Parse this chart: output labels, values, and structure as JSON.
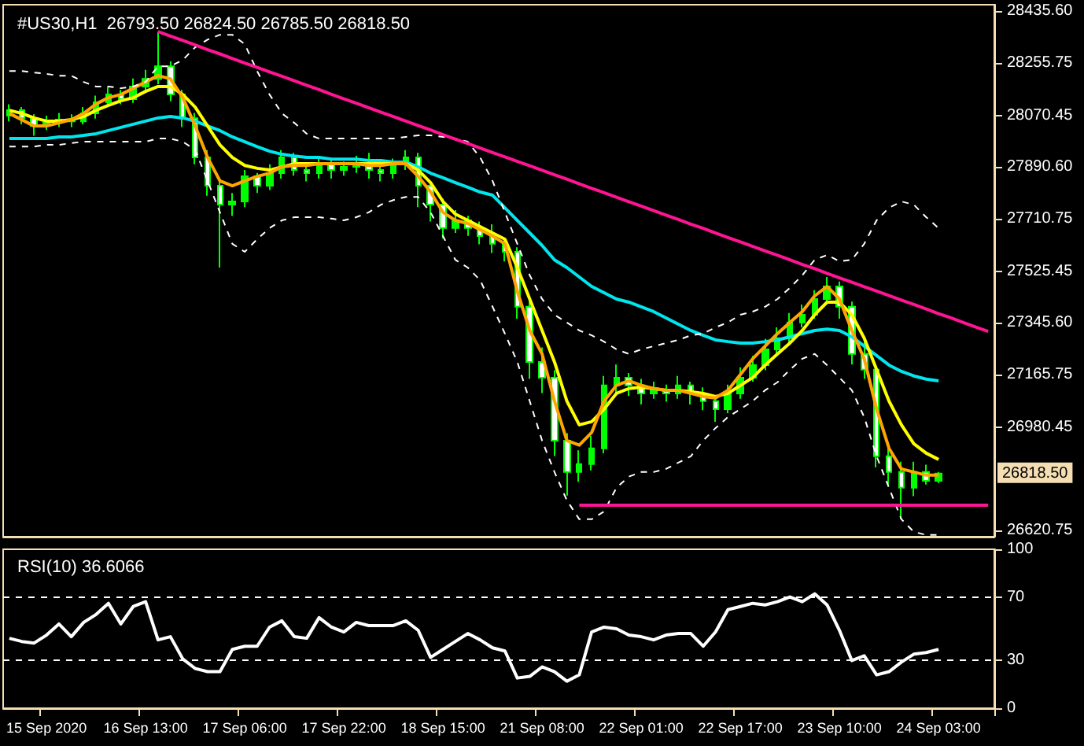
{
  "chart_data": [
    {
      "type": "candlestick",
      "title": "#US30,H1  26793.50 26824.50 26785.50 26818.50",
      "tick_labels": "y",
      "grid": false,
      "marker": "none",
      "color": "#00ff00",
      "categories": [
        null,
        null,
        null,
        null,
        null,
        null,
        null,
        null,
        null,
        null,
        null,
        null,
        null,
        null,
        null,
        null,
        null,
        null,
        null,
        null,
        null,
        null,
        null,
        null,
        null,
        null,
        null,
        null,
        null,
        null,
        null,
        null,
        null,
        null,
        null,
        null,
        null,
        null,
        null,
        null,
        null,
        null,
        null,
        null,
        null,
        null,
        null,
        null,
        null,
        null,
        null,
        null,
        null,
        null,
        null,
        null,
        null,
        null,
        null,
        null,
        null,
        null,
        null,
        null,
        null,
        null,
        null,
        null,
        null,
        null,
        null,
        null,
        null,
        null,
        null,
        null,
        null,
        null,
        null,
        null
      ],
      "ylim": [
        26598,
        28458
      ],
      "yticks": [
        {
          "value": 28435.6,
          "label": "28435.60"
        },
        {
          "value": 28255.75,
          "label": "28255.75"
        },
        {
          "value": 28070.45,
          "label": "28070.45"
        },
        {
          "value": 27890.6,
          "label": "27890.60"
        },
        {
          "value": 27710.75,
          "label": "27710.75"
        },
        {
          "value": 27525.45,
          "label": "27525.45"
        },
        {
          "value": 27345.6,
          "label": "27345.60"
        },
        {
          "value": 27165.75,
          "label": "27165.75"
        },
        {
          "value": 26980.45,
          "label": "26980.45"
        },
        {
          "value": 26620.75,
          "label": "26620.75"
        }
      ],
      "annotations": [
        "26818.50"
      ],
      "ohlc": [
        [
          28070,
          28110,
          28050,
          28089
        ],
        [
          28089,
          28100,
          28040,
          28061
        ],
        [
          28061,
          28075,
          28000,
          28034
        ],
        [
          28034,
          28070,
          28020,
          28045
        ],
        [
          28045,
          28080,
          28030,
          28056
        ],
        [
          28056,
          28075,
          28030,
          28050
        ],
        [
          28050,
          28100,
          28040,
          28078
        ],
        [
          28078,
          28140,
          28060,
          28117
        ],
        [
          28117,
          28170,
          28100,
          28144
        ],
        [
          28144,
          28160,
          28110,
          28128
        ],
        [
          28128,
          28200,
          28115,
          28172
        ],
        [
          28172,
          28230,
          28150,
          28199
        ],
        [
          28199,
          28364,
          28180,
          28243
        ],
        [
          28243,
          28260,
          28120,
          28144
        ],
        [
          28144,
          28160,
          28030,
          28061
        ],
        [
          28061,
          28080,
          27900,
          27924
        ],
        [
          27924,
          27950,
          27790,
          27825
        ],
        [
          27825,
          27840,
          27539,
          27759
        ],
        [
          27759,
          27800,
          27720,
          27770
        ],
        [
          27770,
          27880,
          27750,
          27858
        ],
        [
          27858,
          27870,
          27800,
          27825
        ],
        [
          27825,
          27900,
          27810,
          27869
        ],
        [
          27869,
          27950,
          27850,
          27924
        ],
        [
          27924,
          27940,
          27860,
          27880
        ],
        [
          27880,
          27900,
          27840,
          27869
        ],
        [
          27869,
          27930,
          27850,
          27902
        ],
        [
          27902,
          27920,
          27850,
          27880
        ],
        [
          27880,
          27910,
          27860,
          27891
        ],
        [
          27891,
          27930,
          27870,
          27902
        ],
        [
          27902,
          27940,
          27850,
          27880
        ],
        [
          27880,
          27900,
          27840,
          27869
        ],
        [
          27869,
          27920,
          27850,
          27902
        ],
        [
          27902,
          27950,
          27880,
          27924
        ],
        [
          27924,
          27940,
          27750,
          27825
        ],
        [
          27825,
          27840,
          27700,
          27759
        ],
        [
          27759,
          27780,
          27640,
          27677
        ],
        [
          27677,
          27740,
          27660,
          27704
        ],
        [
          27704,
          27720,
          27650,
          27677
        ],
        [
          27677,
          27700,
          27620,
          27649
        ],
        [
          27649,
          27690,
          27590,
          27622
        ],
        [
          27622,
          27640,
          27560,
          27594
        ],
        [
          27594,
          27610,
          27360,
          27402
        ],
        [
          27402,
          27420,
          27150,
          27209
        ],
        [
          27209,
          27260,
          27100,
          27154
        ],
        [
          27154,
          27180,
          26880,
          26934
        ],
        [
          26934,
          26960,
          26742,
          26824
        ],
        [
          26824,
          26900,
          26790,
          26852
        ],
        [
          26852,
          26950,
          26830,
          26907
        ],
        [
          26907,
          27160,
          26890,
          27127
        ],
        [
          27127,
          27200,
          27100,
          27154
        ],
        [
          27154,
          27170,
          27090,
          27127
        ],
        [
          27127,
          27150,
          27060,
          27099
        ],
        [
          27099,
          27140,
          27080,
          27110
        ],
        [
          27110,
          27130,
          27070,
          27099
        ],
        [
          27099,
          27160,
          27080,
          27127
        ],
        [
          27127,
          27140,
          27060,
          27099
        ],
        [
          27099,
          27120,
          27040,
          27072
        ],
        [
          27072,
          27090,
          27000,
          27044
        ],
        [
          27044,
          27130,
          27030,
          27099
        ],
        [
          27099,
          27190,
          27080,
          27154
        ],
        [
          27154,
          27230,
          27140,
          27198
        ],
        [
          27198,
          27290,
          27180,
          27253
        ],
        [
          27253,
          27330,
          27230,
          27292
        ],
        [
          27292,
          27380,
          27270,
          27347
        ],
        [
          27347,
          27410,
          27330,
          27374
        ],
        [
          27374,
          27460,
          27360,
          27429
        ],
        [
          27429,
          27506,
          27410,
          27473
        ],
        [
          27473,
          27490,
          27360,
          27402
        ],
        [
          27402,
          27420,
          27200,
          27237
        ],
        [
          27237,
          27280,
          27150,
          27182
        ],
        [
          27182,
          27200,
          26840,
          26879
        ],
        [
          26879,
          26920,
          26780,
          26824
        ],
        [
          26824,
          26860,
          26659,
          26769
        ],
        [
          26769,
          26860,
          26740,
          26824
        ],
        [
          26824,
          26850,
          26780,
          26793.5
        ],
        [
          26793.5,
          26824.5,
          26785.5,
          26818.5
        ],
        null,
        null,
        null,
        null
      ],
      "series": [
        {
          "type": "line",
          "color": "#00e5ee",
          "line_style": "solid",
          "values": [
            27990,
            27990,
            27990,
            27990,
            27996,
            27996,
            28001,
            28007,
            28018,
            28029,
            28040,
            28051,
            28062,
            28067,
            28062,
            28051,
            28034,
            28018,
            27996,
            27979,
            27962,
            27946,
            27935,
            27929,
            27924,
            27924,
            27918,
            27918,
            27918,
            27913,
            27913,
            27908,
            27908,
            27891,
            27869,
            27853,
            27836,
            27820,
            27803,
            27792,
            27748,
            27704,
            27660,
            27616,
            27566,
            27539,
            27506,
            27473,
            27451,
            27429,
            27418,
            27402,
            27385,
            27363,
            27341,
            27319,
            27302,
            27286,
            27280,
            27275,
            27275,
            27280,
            27286,
            27297,
            27308,
            27319,
            27324,
            27319,
            27297,
            27264,
            27231,
            27198,
            27176,
            27160,
            27149,
            27143,
            null,
            null,
            null,
            null
          ]
        },
        {
          "type": "line",
          "color": "#ffff00",
          "line_style": "solid",
          "values": [
            28089,
            28078,
            28062,
            28051,
            28051,
            28056,
            28067,
            28089,
            28106,
            28122,
            28133,
            28155,
            28172,
            28172,
            28144,
            28100,
            28034,
            27968,
            27924,
            27896,
            27886,
            27880,
            27891,
            27902,
            27902,
            27902,
            27902,
            27902,
            27902,
            27902,
            27902,
            27902,
            27902,
            27880,
            27836,
            27770,
            27726,
            27704,
            27682,
            27660,
            27638,
            27539,
            27429,
            27319,
            27209,
            27072,
            26989,
            27000,
            27044,
            27099,
            27116,
            27121,
            27116,
            27110,
            27110,
            27105,
            27099,
            27088,
            27099,
            27127,
            27154,
            27198,
            27237,
            27275,
            27319,
            27374,
            27418,
            27418,
            27374,
            27292,
            27182,
            27072,
            26989,
            26923,
            26890,
            26868,
            null,
            null,
            null,
            null
          ]
        },
        {
          "type": "line",
          "color": "#ffa500",
          "line_style": "solid",
          "values": [
            28078,
            28056,
            28034,
            28034,
            28045,
            28056,
            28078,
            28111,
            28133,
            28144,
            28166,
            28188,
            28210,
            28199,
            28133,
            28034,
            27924,
            27842,
            27825,
            27842,
            27858,
            27869,
            27891,
            27896,
            27896,
            27902,
            27902,
            27902,
            27902,
            27896,
            27896,
            27902,
            27902,
            27858,
            27803,
            27732,
            27704,
            27693,
            27671,
            27649,
            27622,
            27456,
            27319,
            27237,
            27072,
            26934,
            26918,
            26962,
            27072,
            27127,
            27143,
            27127,
            27116,
            27110,
            27110,
            27099,
            27088,
            27083,
            27110,
            27165,
            27220,
            27264,
            27308,
            27347,
            27385,
            27440,
            27473,
            27429,
            27319,
            27220,
            27044,
            26907,
            26835,
            26824,
            26813,
            26813,
            null,
            null,
            null,
            null
          ]
        },
        {
          "type": "line",
          "color": "#ffffff",
          "line_style": "dashed",
          "values": [
            28226,
            28226,
            28221,
            28216,
            28210,
            28210,
            28188,
            28172,
            28172,
            28166,
            28172,
            28188,
            28243,
            28243,
            28265,
            28309,
            28336,
            28353,
            28353,
            28320,
            28226,
            28144,
            28078,
            28045,
            28007,
            27990,
            27990,
            27990,
            27990,
            27990,
            27990,
            27990,
            27996,
            28001,
            28001,
            27996,
            27990,
            27979,
            27924,
            27842,
            27732,
            27622,
            27512,
            27429,
            27374,
            27347,
            27319,
            27302,
            27280,
            27253,
            27237,
            27253,
            27264,
            27275,
            27286,
            27302,
            27308,
            27330,
            27347,
            27374,
            27385,
            27402,
            27429,
            27468,
            27512,
            27566,
            27583,
            27561,
            27566,
            27622,
            27704,
            27748,
            27770,
            27759,
            27715,
            27677,
            null,
            null,
            null,
            null
          ]
        },
        {
          "type": "line",
          "color": "#ffffff",
          "line_style": "dashed",
          "values": [
            27962,
            27962,
            27962,
            27968,
            27968,
            27974,
            27979,
            27979,
            27979,
            27979,
            27979,
            27979,
            27990,
            27990,
            27979,
            27951,
            27842,
            27732,
            27622,
            27594,
            27638,
            27677,
            27704,
            27715,
            27715,
            27715,
            27710,
            27704,
            27715,
            27732,
            27759,
            27775,
            27786,
            27786,
            27732,
            27649,
            27566,
            27539,
            27495,
            27402,
            27308,
            27209,
            27072,
            26934,
            26824,
            26725,
            26659,
            26659,
            26686,
            26769,
            26808,
            26824,
            26824,
            26835,
            26857,
            26879,
            26934,
            26978,
            27016,
            27044,
            27072,
            27110,
            27138,
            27182,
            27220,
            27237,
            27198,
            27154,
            27110,
            27016,
            26879,
            26769,
            26659,
            26615,
            26604,
            26604,
            null,
            null,
            null,
            null
          ]
        },
        {
          "type": "line",
          "color": "#ff1493",
          "line_style": "solid",
          "values": [
            null,
            null,
            null,
            null,
            null,
            null,
            null,
            null,
            null,
            null,
            null,
            null,
            28364,
            28348,
            28333,
            28317,
            28301,
            28286,
            28270,
            28254,
            28239,
            28223,
            28208,
            28192,
            28176,
            28161,
            28145,
            28129,
            28114,
            28098,
            28082,
            28067,
            28051,
            28035,
            28020,
            28004,
            27988,
            27973,
            27957,
            27941,
            27926,
            27910,
            27895,
            27879,
            27863,
            27848,
            27832,
            27816,
            27801,
            27785,
            27769,
            27754,
            27738,
            27722,
            27707,
            27691,
            27676,
            27660,
            27644,
            27629,
            27613,
            27597,
            27582,
            27566,
            27550,
            27535,
            27519,
            27503,
            27488,
            27472,
            27457,
            27441,
            27425,
            27410,
            27394,
            27378,
            27363,
            27347,
            27331,
            27316
          ]
        },
        {
          "type": "line",
          "color": "#ff1493",
          "line_style": "solid",
          "values": [
            null,
            null,
            null,
            null,
            null,
            null,
            null,
            null,
            null,
            null,
            null,
            null,
            null,
            null,
            null,
            null,
            null,
            null,
            null,
            null,
            null,
            null,
            null,
            null,
            null,
            null,
            null,
            null,
            null,
            null,
            null,
            null,
            null,
            null,
            null,
            null,
            null,
            null,
            null,
            null,
            null,
            null,
            null,
            null,
            null,
            null,
            26708,
            26708,
            26708,
            26708,
            26708,
            26708,
            26708,
            26708,
            26708,
            26708,
            26708,
            26708,
            26708,
            26708,
            26708,
            26708,
            26708,
            26708,
            26708,
            26708,
            26708,
            26708,
            26708,
            26708,
            26708,
            26708,
            26708,
            26708,
            26708,
            26708,
            26708,
            26708,
            26708,
            26708
          ]
        }
      ]
    },
    {
      "type": "line",
      "title": "RSI(10) 36.6066",
      "grid": false,
      "marker": "none",
      "categories": [
        null,
        null,
        null,
        "15 Sep 2020",
        null,
        null,
        null,
        null,
        null,
        null,
        null,
        "16 Sep 13:00",
        null,
        null,
        null,
        null,
        null,
        null,
        null,
        "17 Sep 06:00",
        null,
        null,
        null,
        null,
        null,
        null,
        null,
        "17 Sep 22:00",
        null,
        null,
        null,
        null,
        null,
        null,
        null,
        "18 Sep 15:00",
        null,
        null,
        null,
        null,
        null,
        null,
        null,
        "21 Sep 08:00",
        null,
        null,
        null,
        null,
        null,
        null,
        null,
        "22 Sep 01:00",
        null,
        null,
        null,
        null,
        null,
        null,
        null,
        "22 Sep 17:00",
        null,
        null,
        null,
        null,
        null,
        null,
        null,
        "23 Sep 10:00",
        null,
        null,
        null,
        null,
        null,
        null,
        null,
        "24 Sep 03:00",
        null,
        null,
        null,
        null
      ],
      "ylim": [
        0,
        100
      ],
      "yticks": [
        0,
        30,
        70,
        100
      ],
      "ref_lines": [
        {
          "axis": "y",
          "value": 70,
          "color": "#ffffff",
          "line_style": "dashed"
        },
        {
          "axis": "y",
          "value": 30,
          "color": "#ffffff",
          "line_style": "dashed"
        }
      ],
      "series": [
        {
          "color": "#ffffff",
          "line_style": "solid",
          "values": [
            44,
            42,
            41,
            46,
            53,
            45,
            54,
            59,
            66,
            53,
            64,
            67,
            43,
            45,
            31,
            25,
            23,
            23,
            37,
            39,
            39,
            51,
            55,
            45,
            44,
            57,
            51,
            48,
            54,
            52,
            52,
            52,
            55,
            49,
            32,
            37,
            42,
            47,
            43,
            38,
            36,
            19,
            20,
            26,
            23,
            17,
            21,
            48,
            51,
            50,
            46,
            45,
            43,
            46,
            47,
            47,
            39,
            48,
            62,
            64,
            66,
            65,
            67,
            70,
            67,
            72,
            65,
            49,
            30,
            33,
            21,
            23,
            29,
            34,
            35,
            37,
            null,
            null,
            null,
            null
          ]
        }
      ]
    }
  ]
}
